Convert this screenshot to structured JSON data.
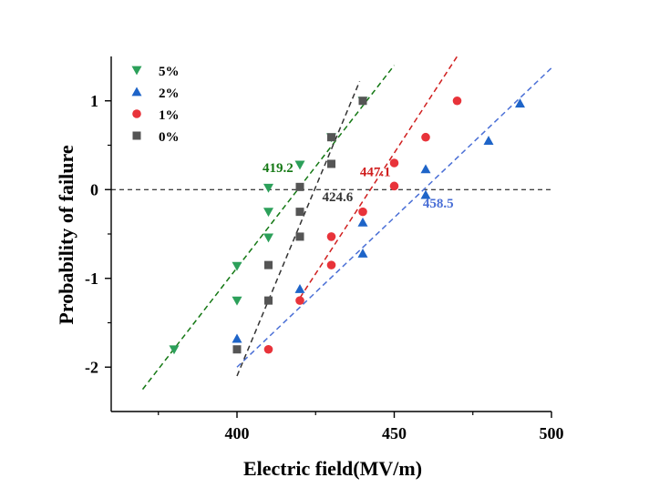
{
  "chart_data": {
    "type": "scatter",
    "xlabel": "Electric field(MV/m)",
    "ylabel": "Probability of failure",
    "xlim": [
      360,
      500
    ],
    "ylim": [
      -2.5,
      1.5
    ],
    "xticks": [
      400,
      450,
      500
    ],
    "yticks": [
      -2,
      -1,
      0,
      1
    ],
    "x_minor_ticks": [
      375,
      425,
      475
    ],
    "y_minor_ticks": [
      -1.5,
      -0.5,
      0.5
    ],
    "grid": false,
    "legend_position": "top-left",
    "reference_line_y": 0,
    "series": [
      {
        "name": "5%",
        "marker": "triangle-down",
        "color": "#2ca05a",
        "fit_color": "#147814",
        "x": [
          380,
          400,
          400,
          410,
          410,
          410,
          420,
          430,
          440
        ],
        "y": [
          -1.8,
          -0.86,
          -1.25,
          0.02,
          -0.25,
          -0.54,
          0.28,
          0.59,
          1.0
        ],
        "fit": {
          "x": [
            370,
            450
          ],
          "y": [
            -2.25,
            1.4
          ]
        },
        "annotation": {
          "text": "419.2",
          "x": 413,
          "y": 0.2
        }
      },
      {
        "name": "2%",
        "marker": "triangle-up",
        "color": "#1e64c8",
        "fit_color": "#4a6fd6",
        "x": [
          400,
          420,
          440,
          440,
          460,
          460,
          480,
          490
        ],
        "y": [
          -1.68,
          -1.12,
          -0.37,
          -0.72,
          0.23,
          -0.06,
          0.55,
          0.97
        ],
        "fit": {
          "x": [
            400,
            500
          ],
          "y": [
            -2.0,
            1.37
          ]
        },
        "annotation": {
          "text": "458.5",
          "x": 464,
          "y": -0.2
        }
      },
      {
        "name": "1%",
        "marker": "circle",
        "color": "#e8333a",
        "fit_color": "#d01e1e",
        "x": [
          410,
          420,
          430,
          430,
          440,
          450,
          450,
          460,
          470
        ],
        "y": [
          -1.8,
          -1.25,
          -0.85,
          -0.53,
          -0.25,
          0.3,
          0.04,
          0.59,
          1.0
        ],
        "fit": {
          "x": [
            420,
            470
          ],
          "y": [
            -1.22,
            1.5
          ]
        },
        "annotation": {
          "text": "447.1",
          "x": 444,
          "y": 0.15
        }
      },
      {
        "name": "0%",
        "marker": "square",
        "color": "#555555",
        "fit_color": "#333333",
        "x": [
          400,
          410,
          410,
          420,
          420,
          420,
          430,
          430,
          440
        ],
        "y": [
          -1.8,
          -1.25,
          -0.85,
          -0.53,
          -0.25,
          0.03,
          0.29,
          0.59,
          1.0
        ],
        "fit": {
          "x": [
            400,
            439
          ],
          "y": [
            -2.1,
            1.22
          ]
        },
        "annotation": {
          "text": "424.6",
          "x": 432,
          "y": -0.13
        }
      }
    ]
  }
}
